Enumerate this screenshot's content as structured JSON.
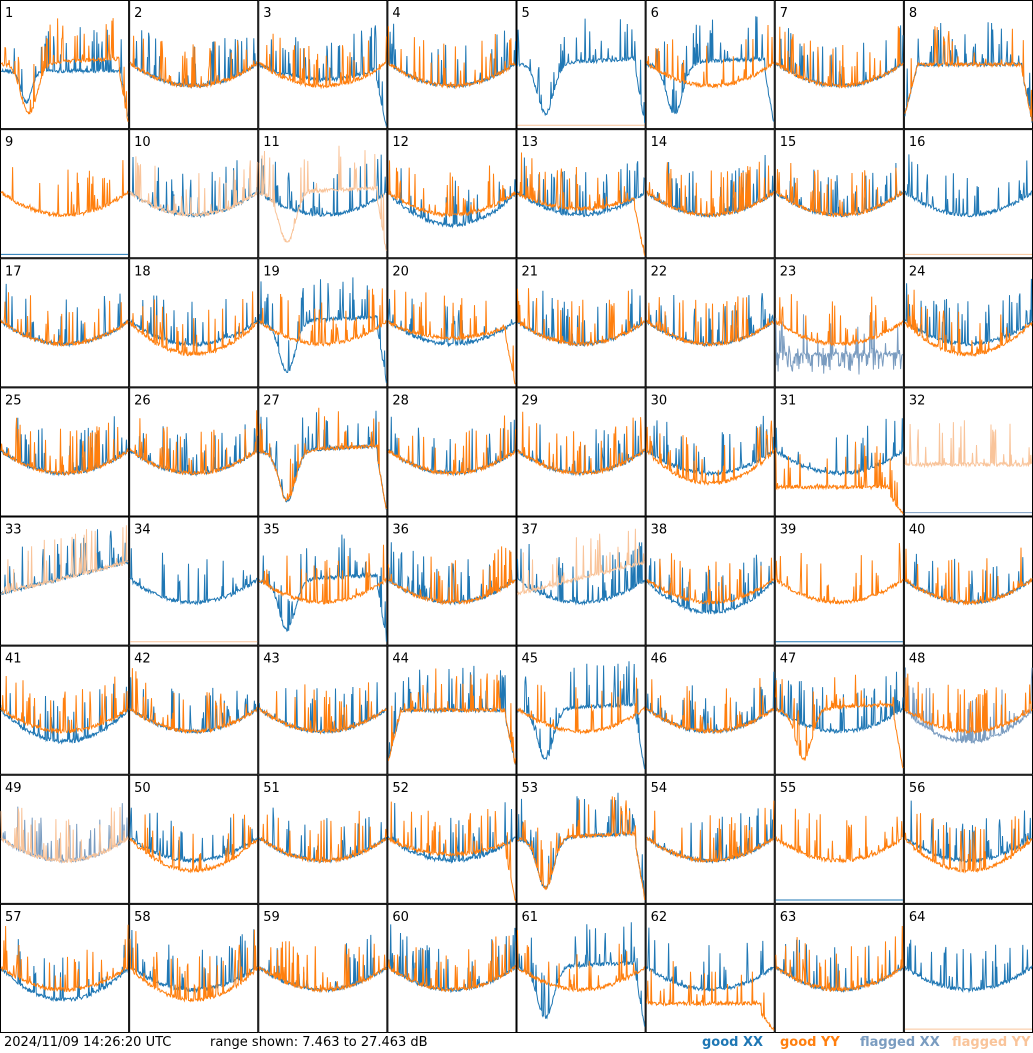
{
  "footer": {
    "timestamp": "2024/11/09 14:26:20 UTC",
    "range_text": "range shown: 7.463 to 27.463 dB"
  },
  "legend": [
    {
      "label": "good XX",
      "color": "#1f77b4"
    },
    {
      "label": "good YY",
      "color": "#ff7f0e"
    },
    {
      "label": "flagged XX",
      "color": "#7a9cc0"
    },
    {
      "label": "flagged YY",
      "color": "#f9c49a"
    }
  ],
  "chart_data": {
    "type": "line",
    "title": "",
    "ylim": [
      7.463,
      27.463
    ],
    "yunit": "dB",
    "panels": [
      {
        "label": "1",
        "xx": "good",
        "yy": "good",
        "xx_shape": "high-dip",
        "yy_shape": "deep-dip"
      },
      {
        "label": "2",
        "xx": "good",
        "yy": "good",
        "xx_shape": "bowl",
        "yy_shape": "bowl"
      },
      {
        "label": "3",
        "xx": "good",
        "yy": "good",
        "xx_shape": "bowl-drop",
        "yy_shape": "bowl"
      },
      {
        "label": "4",
        "xx": "good",
        "yy": "good",
        "xx_shape": "bowl",
        "yy_shape": "bowl"
      },
      {
        "label": "5",
        "xx": "good",
        "yy": "flagged",
        "xx_shape": "deep-dip",
        "yy_shape": "floor"
      },
      {
        "label": "6",
        "xx": "good",
        "yy": "good",
        "xx_shape": "deep-dip",
        "yy_shape": "bowl"
      },
      {
        "label": "7",
        "xx": "good",
        "yy": "good",
        "xx_shape": "bowl",
        "yy_shape": "bowl"
      },
      {
        "label": "8",
        "xx": "good",
        "yy": "good",
        "xx_shape": "plateau",
        "yy_shape": "plateau"
      },
      {
        "label": "9",
        "xx": "good",
        "yy": "good",
        "xx_shape": "floor",
        "yy_shape": "bowl"
      },
      {
        "label": "10",
        "xx": "good",
        "yy": "flagged",
        "xx_shape": "bowl",
        "yy_shape": "bowl"
      },
      {
        "label": "11",
        "xx": "good",
        "yy": "flagged",
        "xx_shape": "bowl",
        "yy_shape": "deep-dip"
      },
      {
        "label": "12",
        "xx": "good",
        "yy": "good",
        "xx_shape": "bowl-deep",
        "yy_shape": "bowl"
      },
      {
        "label": "13",
        "xx": "good",
        "yy": "good",
        "xx_shape": "bowl",
        "yy_shape": "bowl-drop"
      },
      {
        "label": "14",
        "xx": "good",
        "yy": "good",
        "xx_shape": "bowl",
        "yy_shape": "bowl"
      },
      {
        "label": "15",
        "xx": "good",
        "yy": "good",
        "xx_shape": "bowl",
        "yy_shape": "bowl"
      },
      {
        "label": "16",
        "xx": "good",
        "yy": "flagged",
        "xx_shape": "bowl",
        "yy_shape": "floor"
      },
      {
        "label": "17",
        "xx": "good",
        "yy": "good",
        "xx_shape": "bowl",
        "yy_shape": "bowl"
      },
      {
        "label": "18",
        "xx": "good",
        "yy": "good",
        "xx_shape": "bowl",
        "yy_shape": "bowl-deep"
      },
      {
        "label": "19",
        "xx": "good",
        "yy": "good",
        "xx_shape": "deep-dip",
        "yy_shape": "bowl"
      },
      {
        "label": "20",
        "xx": "good",
        "yy": "good",
        "xx_shape": "bowl",
        "yy_shape": "bowl-drop"
      },
      {
        "label": "21",
        "xx": "good",
        "yy": "good",
        "xx_shape": "bowl",
        "yy_shape": "bowl"
      },
      {
        "label": "22",
        "xx": "good",
        "yy": "good",
        "xx_shape": "bowl",
        "yy_shape": "bowl"
      },
      {
        "label": "23",
        "xx": "flagged",
        "yy": "good",
        "xx_shape": "noisy-low",
        "yy_shape": "bowl"
      },
      {
        "label": "24",
        "xx": "good",
        "yy": "good",
        "xx_shape": "bowl",
        "yy_shape": "bowl-deep"
      },
      {
        "label": "25",
        "xx": "good",
        "yy": "good",
        "xx_shape": "bowl",
        "yy_shape": "bowl"
      },
      {
        "label": "26",
        "xx": "good",
        "yy": "good",
        "xx_shape": "bowl",
        "yy_shape": "bowl"
      },
      {
        "label": "27",
        "xx": "good",
        "yy": "good",
        "xx_shape": "deep-dip",
        "yy_shape": "deep-dip"
      },
      {
        "label": "28",
        "xx": "good",
        "yy": "good",
        "xx_shape": "bowl",
        "yy_shape": "bowl"
      },
      {
        "label": "29",
        "xx": "good",
        "yy": "good",
        "xx_shape": "bowl",
        "yy_shape": "bowl"
      },
      {
        "label": "30",
        "xx": "good",
        "yy": "good",
        "xx_shape": "bowl",
        "yy_shape": "bowl-deep"
      },
      {
        "label": "31",
        "xx": "good",
        "yy": "good",
        "xx_shape": "bowl",
        "yy_shape": "low-flat"
      },
      {
        "label": "32",
        "xx": "flagged",
        "yy": "flagged",
        "xx_shape": "floor",
        "yy_shape": "noisy"
      },
      {
        "label": "33",
        "xx": "good",
        "yy": "flagged",
        "xx_shape": "rising",
        "yy_shape": "rising"
      },
      {
        "label": "34",
        "xx": "good",
        "yy": "flagged",
        "xx_shape": "bowl",
        "yy_shape": "floor"
      },
      {
        "label": "35",
        "xx": "good",
        "yy": "good",
        "xx_shape": "deep-dip",
        "yy_shape": "bowl"
      },
      {
        "label": "36",
        "xx": "good",
        "yy": "good",
        "xx_shape": "bowl",
        "yy_shape": "bowl"
      },
      {
        "label": "37",
        "xx": "good",
        "yy": "flagged",
        "xx_shape": "bowl",
        "yy_shape": "rising"
      },
      {
        "label": "38",
        "xx": "good",
        "yy": "good",
        "xx_shape": "bowl-deep",
        "yy_shape": "bowl"
      },
      {
        "label": "39",
        "xx": "good",
        "yy": "good",
        "xx_shape": "floor",
        "yy_shape": "bowl"
      },
      {
        "label": "40",
        "xx": "good",
        "yy": "good",
        "xx_shape": "bowl",
        "yy_shape": "bowl"
      },
      {
        "label": "41",
        "xx": "good",
        "yy": "good",
        "xx_shape": "bowl-deep",
        "yy_shape": "bowl"
      },
      {
        "label": "42",
        "xx": "good",
        "yy": "good",
        "xx_shape": "bowl",
        "yy_shape": "bowl"
      },
      {
        "label": "43",
        "xx": "good",
        "yy": "good",
        "xx_shape": "bowl",
        "yy_shape": "bowl"
      },
      {
        "label": "44",
        "xx": "good",
        "yy": "good",
        "xx_shape": "plateau",
        "yy_shape": "plateau"
      },
      {
        "label": "45",
        "xx": "good",
        "yy": "good",
        "xx_shape": "deep-dip",
        "yy_shape": "bowl"
      },
      {
        "label": "46",
        "xx": "good",
        "yy": "good",
        "xx_shape": "bowl",
        "yy_shape": "bowl"
      },
      {
        "label": "47",
        "xx": "good",
        "yy": "good",
        "xx_shape": "bowl",
        "yy_shape": "deep-dip"
      },
      {
        "label": "48",
        "xx": "flagged",
        "yy": "good",
        "xx_shape": "bowl-deep",
        "yy_shape": "bowl"
      },
      {
        "label": "49",
        "xx": "flagged",
        "yy": "flagged",
        "xx_shape": "bowl",
        "yy_shape": "bowl"
      },
      {
        "label": "50",
        "xx": "good",
        "yy": "good",
        "xx_shape": "bowl",
        "yy_shape": "bowl-deep"
      },
      {
        "label": "51",
        "xx": "good",
        "yy": "good",
        "xx_shape": "bowl",
        "yy_shape": "bowl"
      },
      {
        "label": "52",
        "xx": "good",
        "yy": "good",
        "xx_shape": "bowl",
        "yy_shape": "bowl-drop"
      },
      {
        "label": "53",
        "xx": "good",
        "yy": "good",
        "xx_shape": "deep-dip",
        "yy_shape": "deep-dip"
      },
      {
        "label": "54",
        "xx": "good",
        "yy": "good",
        "xx_shape": "bowl",
        "yy_shape": "bowl"
      },
      {
        "label": "55",
        "xx": "good",
        "yy": "good",
        "xx_shape": "floor",
        "yy_shape": "bowl"
      },
      {
        "label": "56",
        "xx": "good",
        "yy": "good",
        "xx_shape": "bowl",
        "yy_shape": "bowl-deep"
      },
      {
        "label": "57",
        "xx": "good",
        "yy": "good",
        "xx_shape": "bowl-deep",
        "yy_shape": "bowl"
      },
      {
        "label": "58",
        "xx": "good",
        "yy": "good",
        "xx_shape": "bowl",
        "yy_shape": "bowl-deep"
      },
      {
        "label": "59",
        "xx": "good",
        "yy": "good",
        "xx_shape": "bowl",
        "yy_shape": "bowl"
      },
      {
        "label": "60",
        "xx": "good",
        "yy": "good",
        "xx_shape": "bowl",
        "yy_shape": "bowl"
      },
      {
        "label": "61",
        "xx": "good",
        "yy": "good",
        "xx_shape": "deep-dip",
        "yy_shape": "bowl"
      },
      {
        "label": "62",
        "xx": "good",
        "yy": "good",
        "xx_shape": "bowl",
        "yy_shape": "low-flat"
      },
      {
        "label": "63",
        "xx": "good",
        "yy": "good",
        "xx_shape": "bowl",
        "yy_shape": "bowl"
      },
      {
        "label": "64",
        "xx": "good",
        "yy": "flagged",
        "xx_shape": "bowl",
        "yy_shape": "floor"
      }
    ]
  }
}
